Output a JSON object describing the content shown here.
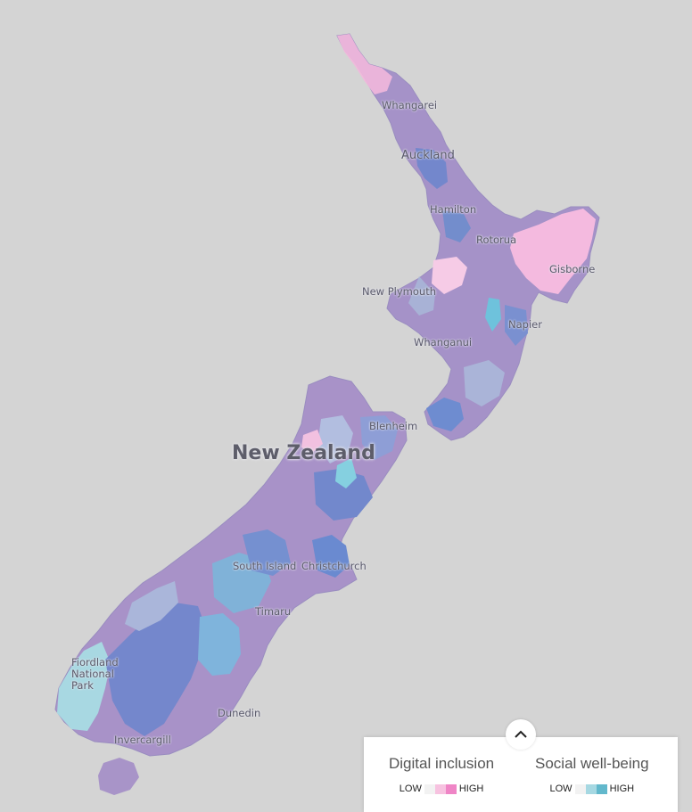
{
  "map": {
    "country_label": "New Zealand",
    "places": [
      {
        "name": "Whangarei"
      },
      {
        "name": "Auckland"
      },
      {
        "name": "Hamilton"
      },
      {
        "name": "Rotorua"
      },
      {
        "name": "Gisborne"
      },
      {
        "name": "New Plymouth"
      },
      {
        "name": "Napier"
      },
      {
        "name": "Whanganui"
      },
      {
        "name": "Blenheim"
      },
      {
        "name": "South Island"
      },
      {
        "name": "Christchurch"
      },
      {
        "name": "Timaru"
      },
      {
        "name": "Fiordland National Park"
      },
      {
        "name": "Dunedin"
      },
      {
        "name": "Invercargill"
      }
    ],
    "colors": {
      "background": "#d4d4d4",
      "purple": "#a98fc4",
      "blue": "#7f8fcc",
      "pink": "#f2b5dc",
      "cyan": "#8fd0dc",
      "light_blue": "#a8b2d6"
    }
  },
  "legend": {
    "collapse_icon": "chevron-up-icon",
    "digital": {
      "title": "Digital inclusion",
      "low": "LOW",
      "high": "HIGH",
      "colors": [
        "#f2f2f2",
        "#f7c2e0",
        "#ef85c6"
      ]
    },
    "social": {
      "title": "Social well-being",
      "low": "LOW",
      "high": "HIGH",
      "colors": [
        "#f2f2f2",
        "#a6d8e2",
        "#62b8cc"
      ]
    }
  }
}
